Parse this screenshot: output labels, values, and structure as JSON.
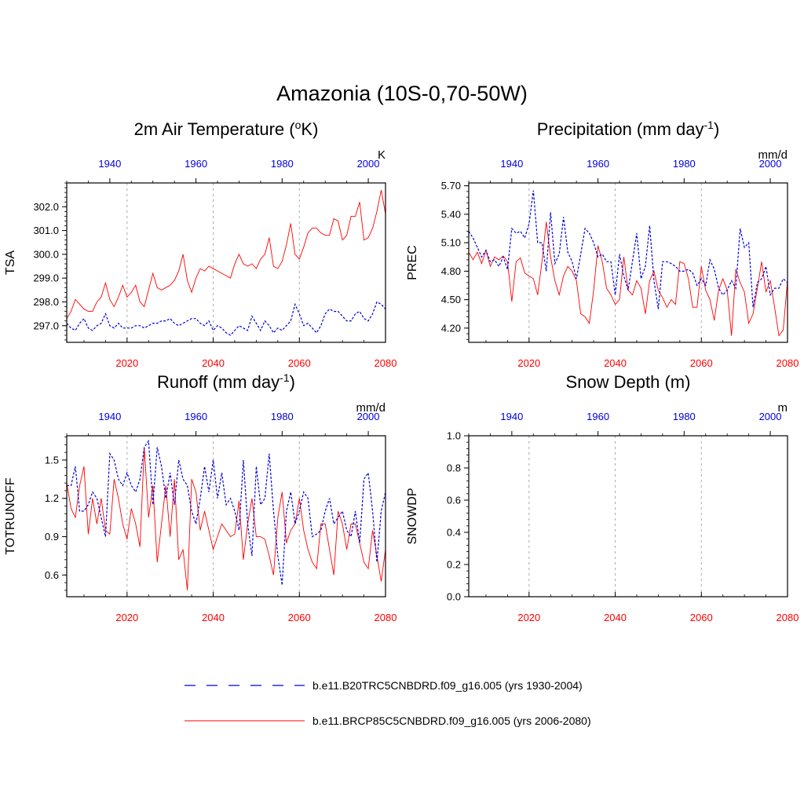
{
  "figure_title": "Amazonia (10S-0,70-50W)",
  "colors": {
    "historical": "#0000dd",
    "future": "#ff0000",
    "grid": "#aaaaaa",
    "axis": "#000000"
  },
  "chart_data": [
    {
      "type": "line",
      "id": "tsa",
      "title": "2m Air Temperature (",
      "title_sup": "o",
      "title_tail": "K)",
      "ylabel": "TSA",
      "units": "K",
      "ylim": [
        296.3,
        303.0
      ],
      "yticks": [
        297.0,
        298.0,
        299.0,
        300.0,
        301.0,
        302.0
      ],
      "ytick_labels": [
        "297.0",
        "298.0",
        "299.0",
        "300.0",
        "301.0",
        "302.0"
      ],
      "xlim_future": [
        2006,
        2080
      ],
      "xlim_hist": [
        1930,
        2004
      ],
      "xticks_future": [
        2020,
        2040,
        2060,
        2080
      ],
      "xticks_hist": [
        1940,
        1960,
        1980,
        2000
      ],
      "series": [
        {
          "name": "b.e11.BRCP85C5CNBDRD.f09_g16.005 (yrs 2006-2080)",
          "axis": "future",
          "values": [
            297.3,
            297.6,
            298.1,
            297.9,
            297.7,
            297.6,
            297.6,
            298.0,
            298.2,
            298.8,
            298.1,
            297.8,
            298.2,
            298.7,
            298.2,
            298.4,
            298.7,
            298.0,
            297.8,
            298.5,
            299.2,
            298.6,
            298.5,
            298.6,
            298.7,
            298.9,
            299.3,
            300.0,
            298.9,
            298.4,
            299.0,
            299.4,
            299.3,
            299.5,
            299.4,
            299.3,
            299.2,
            299.1,
            299.0,
            299.6,
            300.0,
            299.6,
            299.5,
            299.6,
            299.4,
            299.8,
            300.0,
            300.7,
            299.5,
            299.4,
            299.7,
            300.4,
            301.3,
            300.0,
            299.8,
            300.3,
            300.9,
            301.1,
            301.1,
            300.9,
            300.8,
            300.8,
            301.5,
            301.4,
            300.6,
            300.8,
            301.6,
            301.6,
            302.2,
            300.6,
            300.7,
            301.1,
            301.8,
            302.7,
            301.7
          ]
        },
        {
          "name": "b.e11.B20TRC5CNBDRD.f09_g16.005 (yrs 1930-2004)",
          "axis": "hist",
          "values": [
            297.1,
            296.9,
            296.8,
            297.1,
            297.3,
            296.9,
            296.8,
            297.0,
            297.1,
            297.5,
            297.0,
            296.9,
            297.1,
            296.9,
            296.9,
            296.9,
            297.0,
            297.0,
            296.9,
            297.0,
            297.1,
            297.1,
            297.2,
            297.2,
            297.3,
            297.1,
            297.0,
            297.1,
            297.2,
            297.3,
            297.3,
            297.1,
            297.0,
            297.2,
            296.8,
            297.0,
            296.9,
            296.7,
            296.6,
            296.8,
            297.0,
            296.9,
            296.8,
            297.4,
            297.1,
            296.8,
            297.2,
            297.0,
            296.7,
            296.9,
            296.8,
            297.0,
            297.2,
            297.9,
            297.5,
            297.0,
            297.1,
            296.9,
            296.7,
            297.0,
            297.5,
            297.7,
            297.6,
            297.6,
            297.4,
            297.2,
            297.2,
            297.5,
            297.6,
            297.3,
            297.2,
            297.5,
            298.0,
            297.9,
            297.7
          ]
        }
      ]
    },
    {
      "type": "line",
      "id": "prec",
      "title": "Precipitation (mm day",
      "title_sup": "-1",
      "title_tail": ")",
      "ylabel": "PREC",
      "units": "mm/d",
      "ylim": [
        4.05,
        5.73
      ],
      "yticks": [
        4.2,
        4.5,
        4.8,
        5.1,
        5.4,
        5.7
      ],
      "ytick_labels": [
        "4.20",
        "4.50",
        "4.80",
        "5.10",
        "5.40",
        "5.70"
      ],
      "xlim_future": [
        2006,
        2080
      ],
      "xlim_hist": [
        1930,
        2004
      ],
      "xticks_future": [
        2020,
        2040,
        2060,
        2080
      ],
      "xticks_hist": [
        1940,
        1960,
        1980,
        2000
      ],
      "series": [
        {
          "name": "b.e11.BRCP85C5CNBDRD.f09_g16.005 (yrs 2006-2080)",
          "axis": "future",
          "values": [
            5.0,
            4.92,
            5.0,
            4.88,
            5.02,
            4.85,
            4.95,
            4.92,
            4.96,
            4.9,
            4.48,
            4.9,
            4.94,
            4.78,
            4.75,
            4.72,
            4.55,
            4.9,
            5.32,
            4.95,
            4.7,
            4.55,
            4.75,
            4.85,
            4.8,
            4.7,
            4.35,
            4.32,
            4.25,
            4.6,
            5.07,
            4.9,
            4.62,
            4.55,
            4.45,
            4.5,
            4.95,
            4.6,
            4.55,
            4.7,
            4.62,
            4.35,
            4.7,
            4.8,
            4.6,
            4.52,
            4.42,
            4.5,
            4.45,
            4.9,
            4.88,
            4.72,
            4.42,
            4.42,
            4.85,
            4.6,
            4.5,
            4.28,
            4.6,
            4.72,
            4.6,
            4.12,
            4.82,
            4.68,
            4.58,
            4.25,
            4.35,
            4.62,
            4.9,
            4.58,
            4.7,
            4.42,
            4.12,
            4.18,
            4.7
          ]
        },
        {
          "name": "b.e11.B20TRC5CNBDRD.f09_g16.005 (yrs 1930-2004)",
          "axis": "hist",
          "values": [
            5.22,
            5.15,
            5.05,
            4.95,
            5.02,
            4.9,
            4.92,
            4.85,
            4.95,
            4.82,
            5.25,
            5.2,
            5.22,
            5.15,
            5.3,
            5.65,
            5.1,
            5.1,
            4.8,
            5.42,
            4.88,
            4.98,
            5.37,
            5.0,
            4.9,
            4.72,
            4.98,
            5.25,
            5.2,
            5.1,
            4.95,
            4.98,
            4.9,
            4.9,
            4.55,
            4.98,
            4.75,
            4.6,
            4.9,
            5.2,
            4.72,
            4.85,
            5.28,
            4.7,
            4.4,
            4.9,
            4.9,
            4.88,
            4.85,
            4.8,
            4.8,
            4.82,
            4.78,
            4.65,
            4.72,
            4.65,
            4.92,
            4.82,
            4.62,
            4.55,
            4.6,
            4.7,
            4.62,
            5.25,
            5.05,
            5.1,
            4.42,
            4.68,
            4.72,
            4.85,
            4.55,
            4.62,
            4.62,
            4.72,
            4.68
          ]
        }
      ]
    },
    {
      "type": "line",
      "id": "runoff",
      "title": "Runoff (mm day",
      "title_sup": "-1",
      "title_tail": ")",
      "ylabel": "TOTRUNOFF",
      "units": "mm/d",
      "ylim": [
        0.43,
        1.69
      ],
      "yticks": [
        0.6,
        0.9,
        1.2,
        1.5
      ],
      "ytick_labels": [
        "0.6",
        "0.9",
        "1.2",
        "1.5"
      ],
      "xlim_future": [
        2006,
        2080
      ],
      "xlim_hist": [
        1930,
        2004
      ],
      "xticks_future": [
        2020,
        2040,
        2060,
        2080
      ],
      "xticks_hist": [
        1940,
        1960,
        1980,
        2000
      ],
      "series": [
        {
          "name": "b.e11.BRCP85C5CNBDRD.f09_g16.005 (yrs 2006-2080)",
          "axis": "future",
          "values": [
            1.32,
            1.12,
            1.05,
            1.3,
            1.45,
            0.92,
            1.2,
            1.0,
            1.2,
            0.95,
            0.92,
            1.35,
            1.2,
            1.0,
            0.88,
            1.12,
            1.0,
            0.82,
            1.6,
            1.05,
            1.3,
            0.7,
            1.0,
            1.3,
            0.9,
            1.35,
            0.72,
            0.8,
            0.48,
            1.35,
            1.25,
            0.95,
            1.1,
            0.95,
            0.8,
            0.9,
            1.0,
            0.95,
            0.9,
            0.92,
            1.18,
            0.72,
            1.0,
            1.2,
            0.9,
            0.9,
            0.88,
            0.75,
            0.6,
            1.05,
            1.25,
            0.85,
            0.95,
            1.0,
            1.2,
            0.95,
            0.8,
            0.7,
            0.65,
            1.0,
            1.0,
            0.8,
            0.6,
            1.1,
            1.0,
            0.8,
            1.0,
            1.0,
            0.85,
            0.7,
            0.65,
            0.95,
            0.75,
            0.55,
            0.8
          ]
        },
        {
          "name": "b.e11.B20TRC5CNBDRD.f09_g16.005 (yrs 1930-2004)",
          "axis": "hist",
          "values": [
            1.3,
            1.3,
            1.45,
            1.1,
            1.1,
            1.15,
            1.25,
            1.2,
            1.05,
            0.9,
            1.55,
            1.5,
            1.35,
            1.3,
            1.4,
            1.3,
            1.25,
            1.35,
            1.6,
            1.65,
            1.15,
            1.6,
            1.45,
            1.2,
            1.4,
            1.15,
            1.5,
            1.35,
            1.3,
            1.1,
            1.0,
            1.2,
            1.45,
            1.25,
            1.5,
            1.2,
            1.4,
            1.15,
            1.2,
            1.1,
            0.95,
            1.5,
            1.0,
            0.75,
            1.45,
            1.15,
            1.2,
            1.55,
            1.1,
            0.75,
            0.52,
            1.1,
            1.25,
            1.0,
            1.1,
            1.25,
            1.2,
            0.9,
            0.92,
            0.95,
            1.1,
            1.2,
            1.0,
            1.05,
            1.1,
            0.95,
            0.9,
            1.1,
            0.85,
            1.35,
            1.4,
            1.1,
            0.7,
            1.1,
            1.25
          ]
        }
      ]
    },
    {
      "type": "line",
      "id": "snowdp",
      "title": "Snow Depth (m)",
      "title_sup": "",
      "title_tail": "",
      "ylabel": "SNOWDP",
      "units": "m",
      "ylim": [
        0.0,
        1.0
      ],
      "yticks": [
        0.0,
        0.2,
        0.4,
        0.6,
        0.8,
        1.0
      ],
      "ytick_labels": [
        "0.0",
        "0.2",
        "0.4",
        "0.6",
        "0.8",
        "1.0"
      ],
      "xlim_future": [
        2006,
        2080
      ],
      "xlim_hist": [
        1930,
        2004
      ],
      "xticks_future": [
        2020,
        2040,
        2060,
        2080
      ],
      "xticks_hist": [
        1940,
        1960,
        1980,
        2000
      ],
      "series": []
    }
  ],
  "legend": [
    {
      "label": "b.e11.B20TRC5CNBDRD.f09_g16.005 (yrs 1930-2004)",
      "style": "dashed",
      "color": "#0000dd"
    },
    {
      "label": "b.e11.BRCP85C5CNBDRD.f09_g16.005 (yrs 2006-2080)",
      "style": "solid",
      "color": "#ff0000"
    }
  ]
}
